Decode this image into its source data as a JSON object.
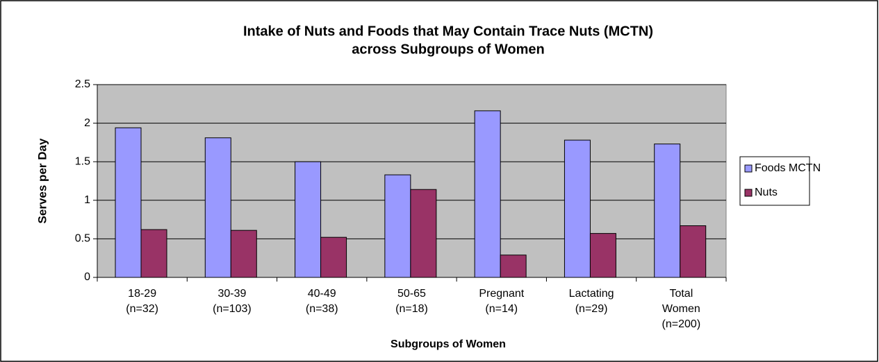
{
  "chart_data": {
    "type": "bar",
    "title": [
      "Intake of Nuts and Foods that May Contain Trace Nuts (MCTN)",
      "across Subgroups of Women"
    ],
    "x_label": "Subgroups of Women",
    "y_label": "Serves per Day",
    "categories": [
      [
        "18-29",
        "(n=32)"
      ],
      [
        "30-39",
        "(n=103)"
      ],
      [
        "40-49",
        "(n=38)"
      ],
      [
        "50-65",
        "(n=18)"
      ],
      [
        "Pregnant",
        "(n=14)"
      ],
      [
        "Lactating",
        "(n=29)"
      ],
      [
        "Total",
        "Women",
        "(n=200)"
      ]
    ],
    "series": [
      {
        "name": "Foods MCTN",
        "color": "#9999ff",
        "values": [
          1.94,
          1.81,
          1.5,
          1.33,
          2.16,
          1.78,
          1.73
        ]
      },
      {
        "name": "Nuts",
        "color": "#993366",
        "values": [
          0.62,
          0.61,
          0.52,
          1.14,
          0.29,
          0.57,
          0.67
        ]
      }
    ],
    "ylim": [
      0,
      2.5
    ],
    "yticks": [
      0,
      0.5,
      1,
      1.5,
      2,
      2.5
    ],
    "grid": true,
    "legend": "right",
    "plot_background": "#c0c0c0"
  }
}
